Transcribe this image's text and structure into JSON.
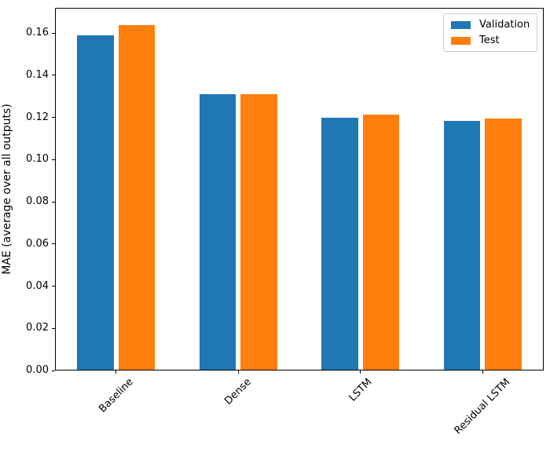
{
  "chart_data": {
    "type": "bar",
    "categories": [
      "Baseline",
      "Dense",
      "LSTM",
      "Residual LSTM"
    ],
    "series": [
      {
        "name": "Validation",
        "color": "#1f77b4",
        "values": [
          0.159,
          0.131,
          0.12,
          0.1185
        ]
      },
      {
        "name": "Test",
        "color": "#ff7f0e",
        "values": [
          0.164,
          0.131,
          0.1215,
          0.1195
        ]
      }
    ],
    "title": "",
    "xlabel": "",
    "ylabel": "MAE (average over all outputs)",
    "ylim": [
      0,
      0.172
    ],
    "yticks": [
      0.0,
      0.02,
      0.04,
      0.06,
      0.08,
      0.1,
      0.12,
      0.14,
      0.16
    ],
    "ytick_labels": [
      "0.00",
      "0.02",
      "0.04",
      "0.06",
      "0.08",
      "0.10",
      "0.12",
      "0.14",
      "0.16"
    ],
    "xtick_rotation_deg": 45,
    "legend_position": "upper right",
    "grid": false,
    "bar_width_frac": 0.3,
    "bar_offset_frac": 0.17,
    "axis_color": "#000000",
    "background": "#ffffff"
  }
}
